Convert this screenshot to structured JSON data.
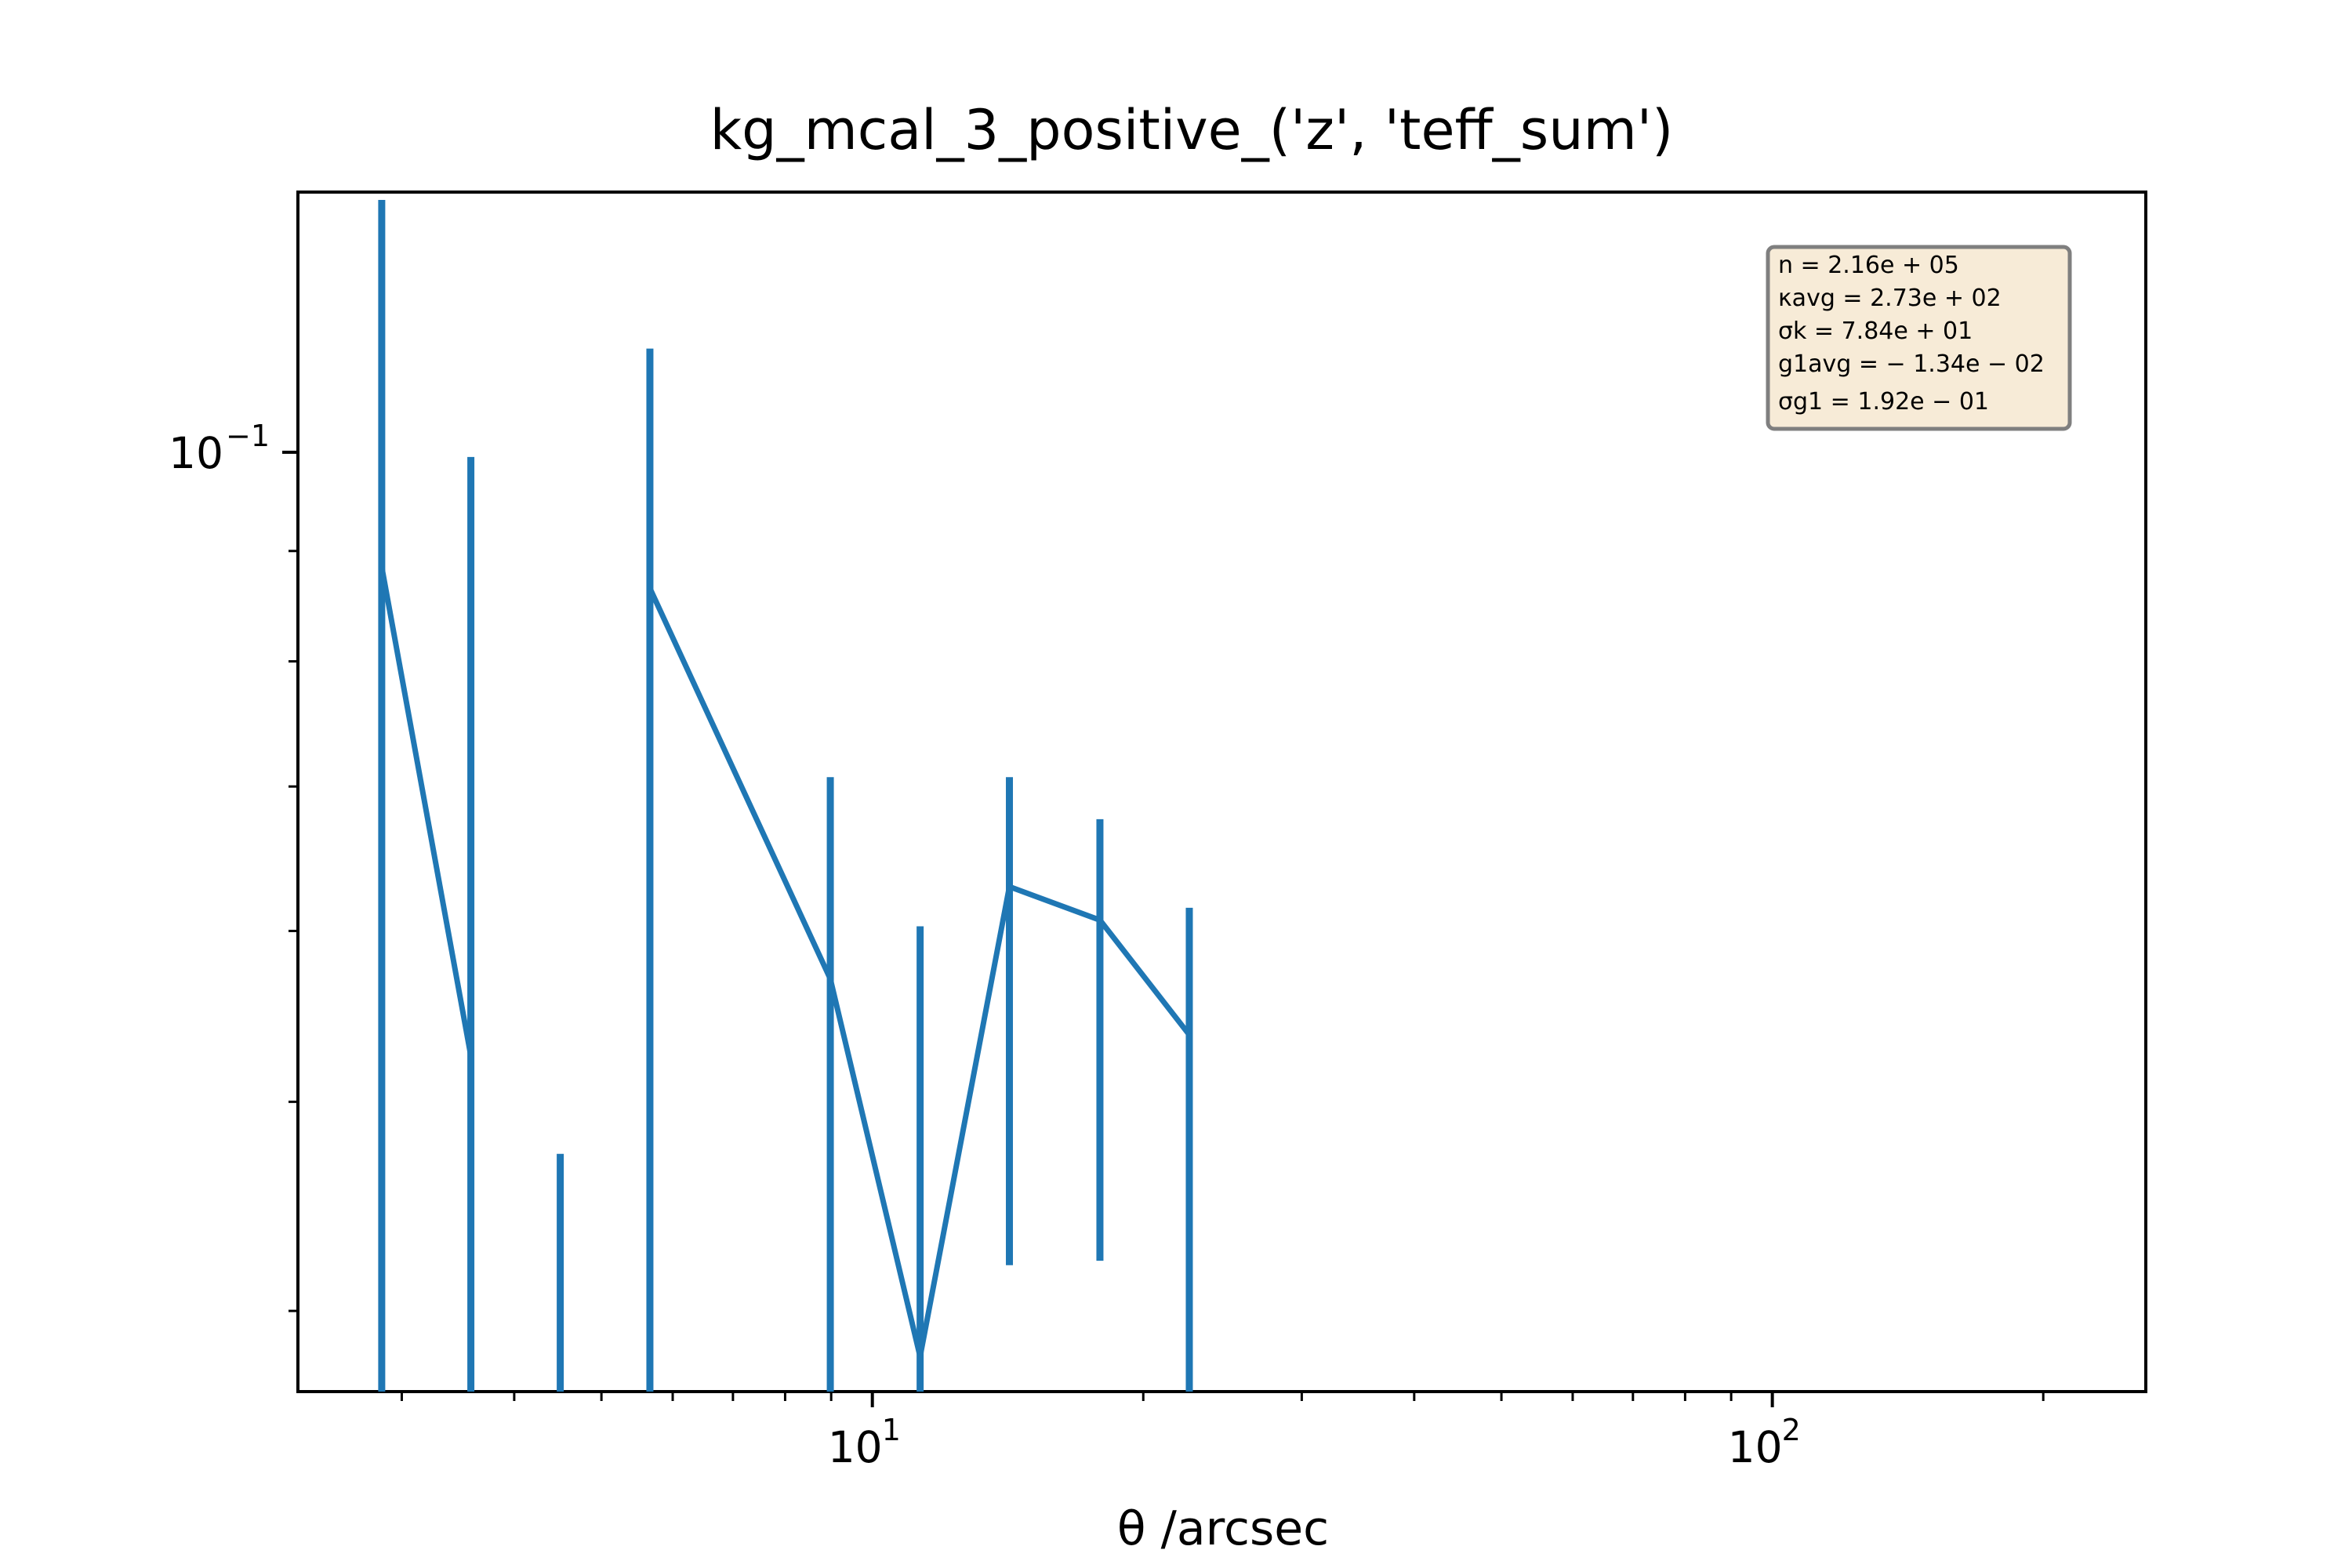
{
  "chart_data": {
    "type": "line",
    "title": "kg_mcal_3_positive_('z', 'teff_sum')",
    "xlabel": "θ /arcsec",
    "ylabel": "",
    "xscale": "log",
    "yscale": "log",
    "xlim": [
      2.3,
      260
    ],
    "ylim": [
      0.0367,
      0.132
    ],
    "grid": false,
    "x_tick_labels": [
      {
        "value": 10,
        "base": "10",
        "exp": "1"
      },
      {
        "value": 100,
        "base": "10",
        "exp": "2"
      }
    ],
    "y_tick_labels": [
      {
        "value": 0.1,
        "base": "10",
        "exp": "−1"
      }
    ],
    "series": [
      {
        "color": "#1f77b4",
        "points": [
          {
            "x": 2.85,
            "y": 0.0885,
            "err_low": 0.0367,
            "err_high": 0.1309
          },
          {
            "x": 3.58,
            "y": 0.0525,
            "err_low": 0.0367,
            "err_high": 0.0995
          },
          {
            "x": 4.5,
            "y": null,
            "err_low": 0.0367,
            "err_high": 0.0473
          },
          {
            "x": 5.66,
            "y": 0.0865,
            "err_low": 0.0367,
            "err_high": 0.1117
          },
          {
            "x": 8.98,
            "y": 0.057,
            "err_low": 0.0367,
            "err_high": 0.0707
          },
          {
            "x": 11.3,
            "y": 0.0381,
            "err_low": 0.0367,
            "err_high": 0.0603
          },
          {
            "x": 14.2,
            "y": 0.0629,
            "err_low": 0.042,
            "err_high": 0.0707
          },
          {
            "x": 17.9,
            "y": 0.0607,
            "err_low": 0.0422,
            "err_high": 0.0676
          },
          {
            "x": 22.5,
            "y": 0.0537,
            "err_low": 0.0367,
            "err_high": 0.0615
          }
        ]
      }
    ],
    "stats_box": {
      "placement": "top-right",
      "lines": [
        "n = 2.16e + 05",
        "κavg = 2.73e + 02",
        "σk = 7.84e + 01",
        "g1avg = − 1.34e − 02",
        "σg1 = 1.92e − 01"
      ]
    }
  },
  "colors": {
    "series": "#1f77b4",
    "stats_box_fill": "#f7ebd7",
    "stats_box_border": "#7f7f7f"
  }
}
